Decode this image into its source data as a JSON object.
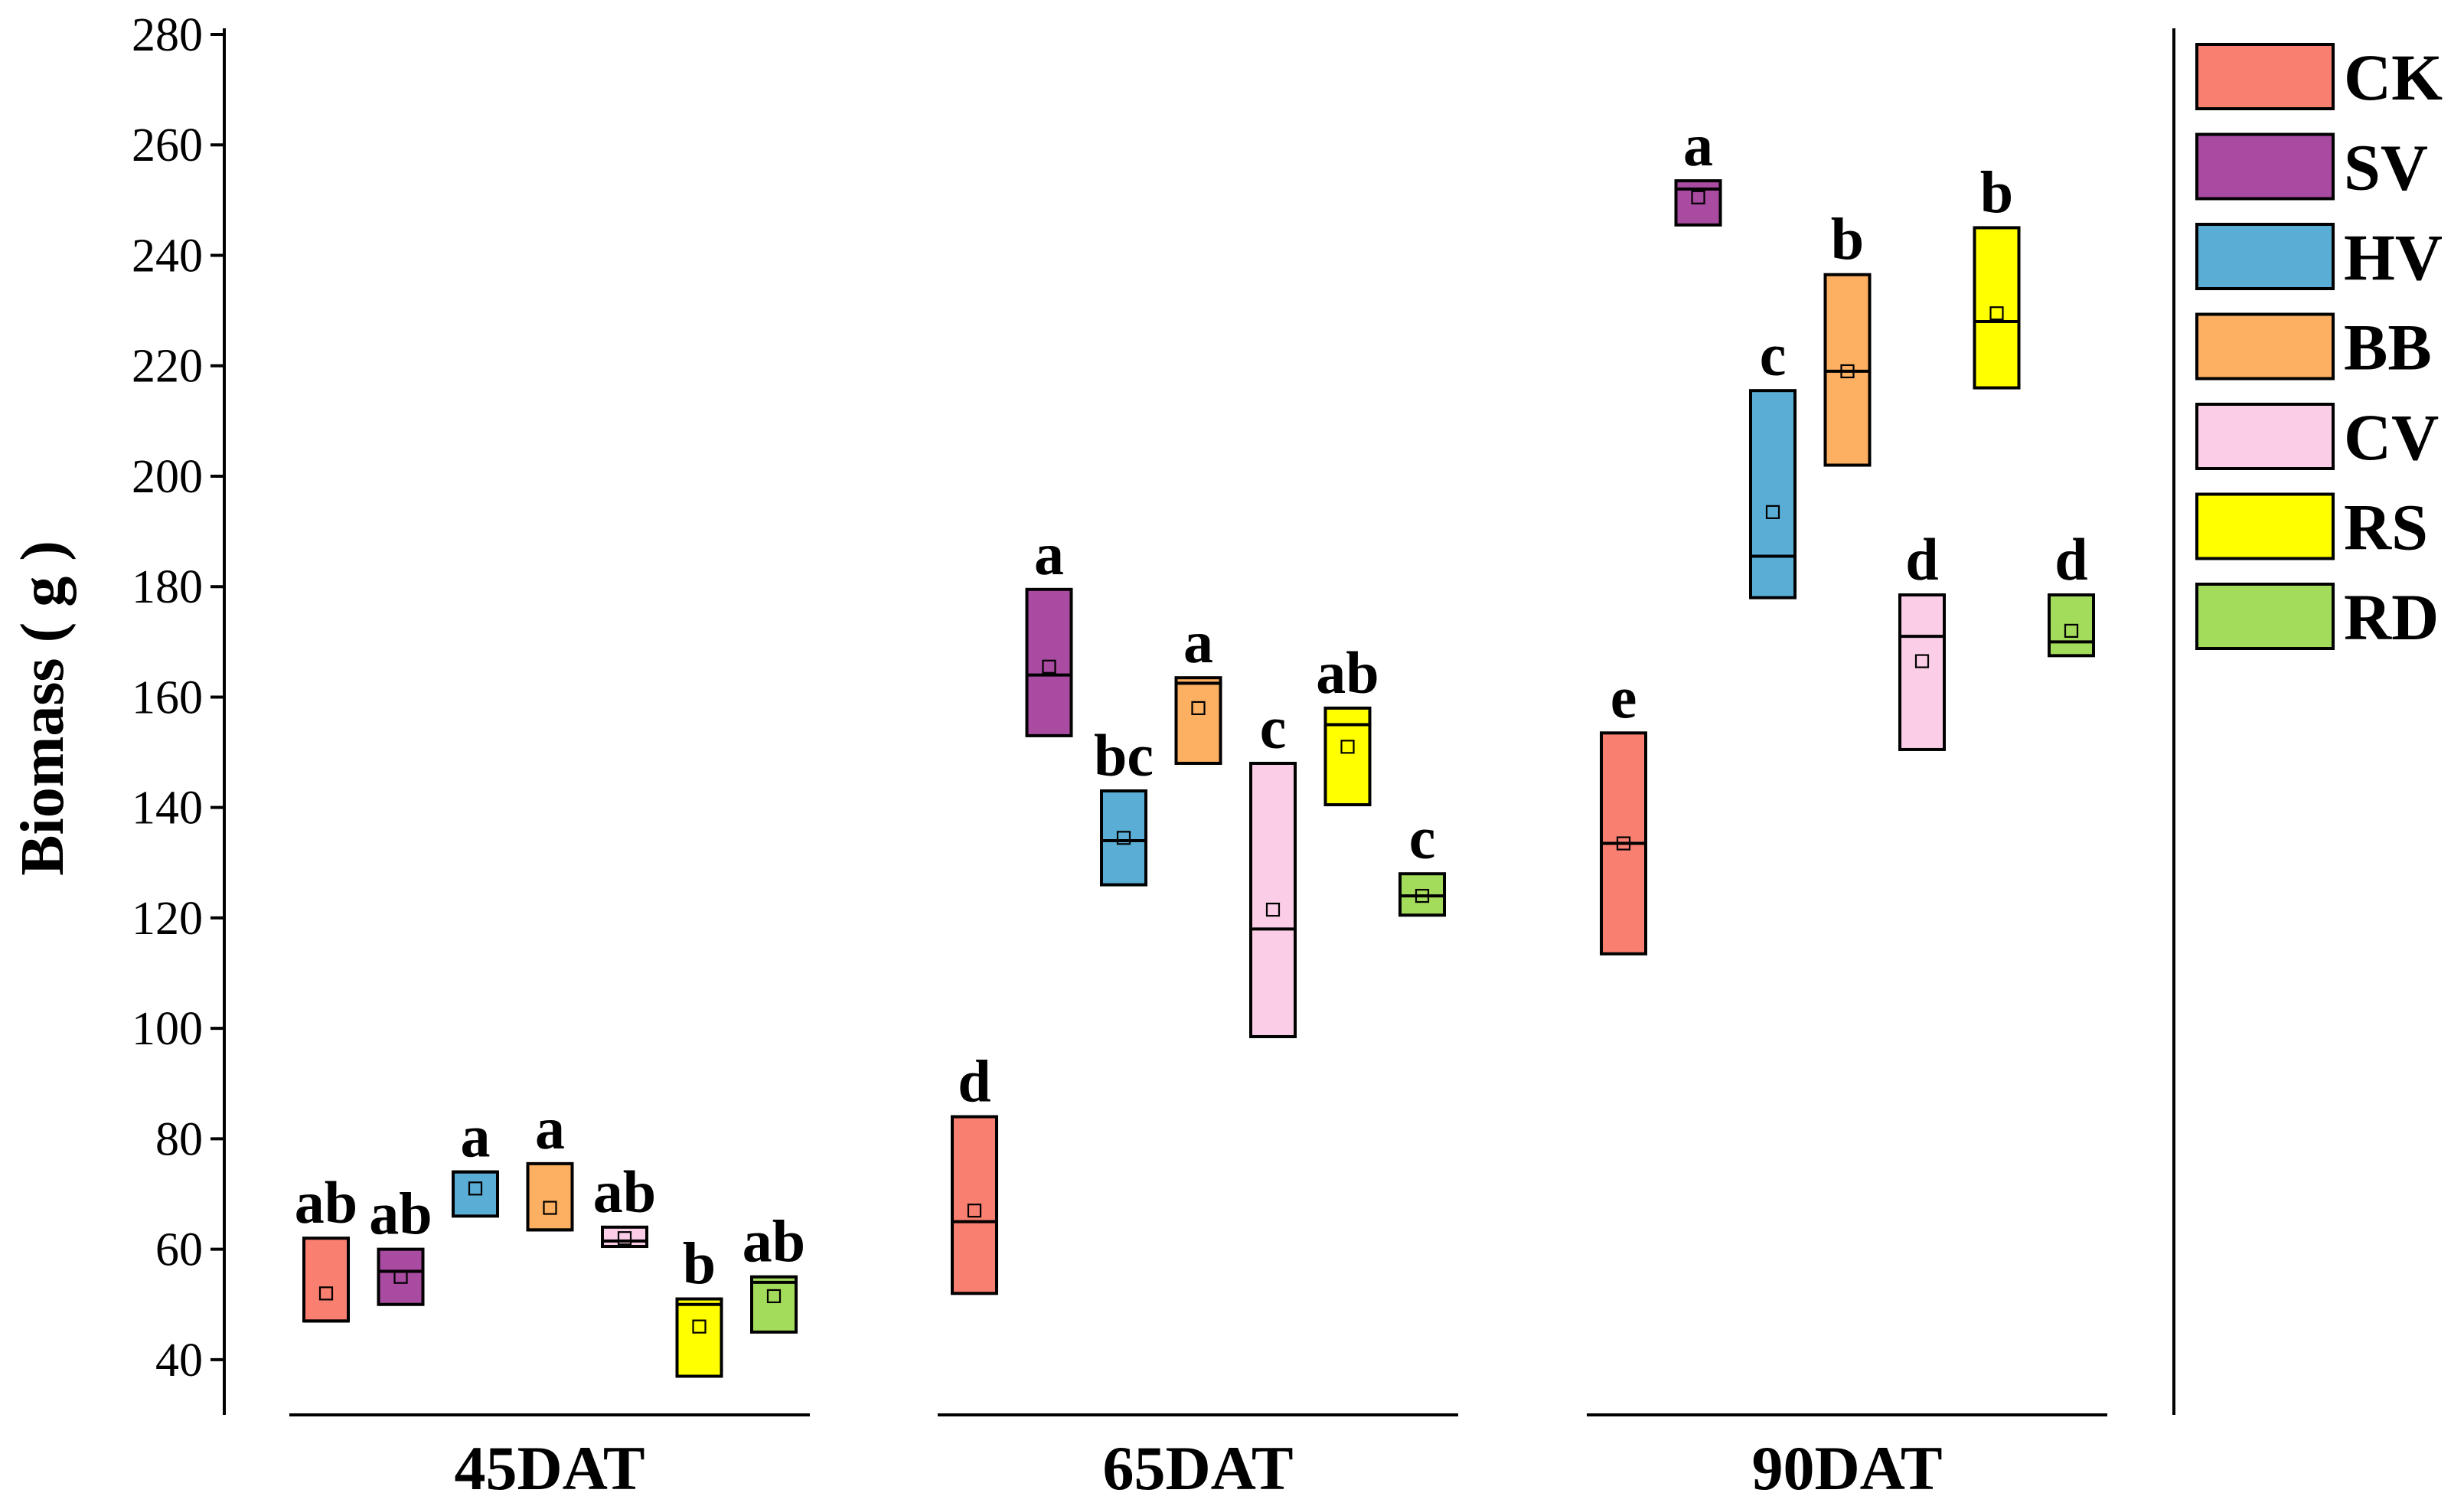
{
  "chart_data": {
    "type": "box",
    "ylabel": "Biomass ( g )",
    "xlabel": "",
    "ylim": [
      30,
      280
    ],
    "yticks": [
      40,
      60,
      80,
      100,
      120,
      140,
      160,
      180,
      200,
      220,
      240,
      260,
      280
    ],
    "groups": [
      "45DAT",
      "65DAT",
      "90DAT"
    ],
    "legend_position": "right",
    "series": [
      {
        "name": "CK",
        "color": "#F97F70"
      },
      {
        "name": "SV",
        "color": "#A94BA1"
      },
      {
        "name": "HV",
        "color": "#5AAED6"
      },
      {
        "name": "BB",
        "color": "#FDB061"
      },
      {
        "name": "CV",
        "color": "#FCCDE6"
      },
      {
        "name": "RS",
        "color": "#FFFF00"
      },
      {
        "name": "RD",
        "color": "#A3DB5A"
      }
    ],
    "boxes": [
      {
        "group": "45DAT",
        "series": "CK",
        "low": 47,
        "high": 62,
        "median": 47,
        "mean": 52,
        "sig": "ab"
      },
      {
        "group": "45DAT",
        "series": "SV",
        "low": 50,
        "high": 60,
        "median": 56,
        "mean": 55,
        "sig": "ab"
      },
      {
        "group": "45DAT",
        "series": "HV",
        "low": 66,
        "high": 74,
        "median": 74,
        "mean": 71,
        "sig": "a"
      },
      {
        "group": "45DAT",
        "series": "BB",
        "low": 63.5,
        "high": 75.5,
        "median": 63.5,
        "mean": 67.5,
        "sig": "a"
      },
      {
        "group": "45DAT",
        "series": "CV",
        "low": 60.5,
        "high": 64,
        "median": 61.5,
        "mean": 62,
        "sig": "ab"
      },
      {
        "group": "45DAT",
        "series": "RS",
        "low": 37,
        "high": 51,
        "median": 50,
        "mean": 46,
        "sig": "b"
      },
      {
        "group": "45DAT",
        "series": "RD",
        "low": 45,
        "high": 55,
        "median": 54,
        "mean": 51.5,
        "sig": "ab"
      },
      {
        "group": "65DAT",
        "series": "CK",
        "low": 52,
        "high": 84,
        "median": 65,
        "mean": 67,
        "sig": "d"
      },
      {
        "group": "65DAT",
        "series": "SV",
        "low": 153,
        "high": 179.5,
        "median": 164,
        "mean": 165.5,
        "sig": "a"
      },
      {
        "group": "65DAT",
        "series": "HV",
        "low": 126,
        "high": 143,
        "median": 134,
        "mean": 134.5,
        "sig": "bc"
      },
      {
        "group": "65DAT",
        "series": "BB",
        "low": 148,
        "high": 163.5,
        "median": 162.5,
        "mean": 158,
        "sig": "a"
      },
      {
        "group": "65DAT",
        "series": "CV",
        "low": 98.5,
        "high": 148,
        "median": 118,
        "mean": 121.5,
        "sig": "c"
      },
      {
        "group": "65DAT",
        "series": "RS",
        "low": 140.5,
        "high": 158,
        "median": 155,
        "mean": 151,
        "sig": "ab"
      },
      {
        "group": "65DAT",
        "series": "RD",
        "low": 120.5,
        "high": 128,
        "median": 124,
        "mean": 124,
        "sig": "c"
      },
      {
        "group": "90DAT",
        "series": "CK",
        "low": 113.5,
        "high": 153.5,
        "median": 133.5,
        "mean": 133.5,
        "sig": "e"
      },
      {
        "group": "90DAT",
        "series": "SV",
        "low": 245.5,
        "high": 253.5,
        "median": 252,
        "mean": 250.5,
        "sig": "a"
      },
      {
        "group": "90DAT",
        "series": "HV",
        "low": 178,
        "high": 215.5,
        "median": 185.5,
        "mean": 193.5,
        "sig": "c"
      },
      {
        "group": "90DAT",
        "series": "BB",
        "low": 202,
        "high": 236.5,
        "median": 219,
        "mean": 219,
        "sig": "b"
      },
      {
        "group": "90DAT",
        "series": "CV",
        "low": 150.5,
        "high": 178.5,
        "median": 171,
        "mean": 166.5,
        "sig": "d"
      },
      {
        "group": "90DAT",
        "series": "RS",
        "low": 216,
        "high": 245,
        "median": 228,
        "mean": 229.5,
        "sig": "b"
      },
      {
        "group": "90DAT",
        "series": "RD",
        "low": 167.5,
        "high": 178.5,
        "median": 170,
        "mean": 172,
        "sig": "d"
      }
    ]
  }
}
